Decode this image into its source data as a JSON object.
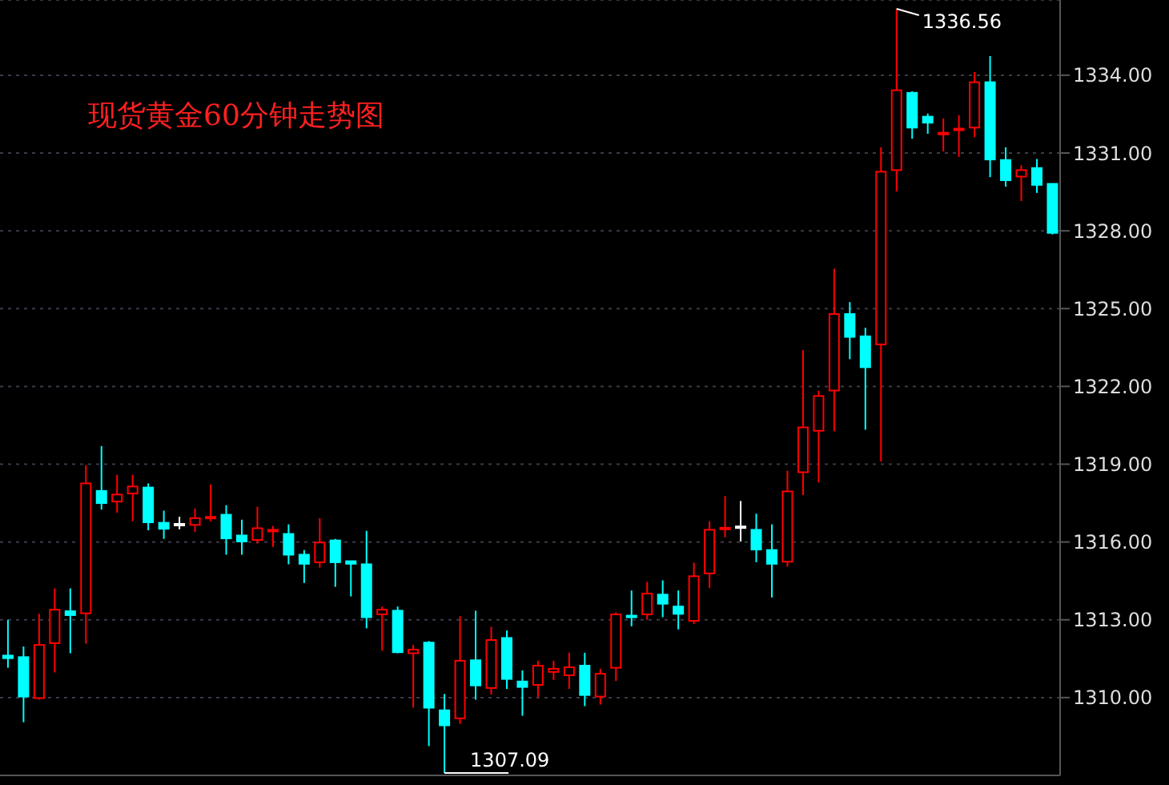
{
  "chart_data": {
    "type": "candlestick",
    "title": "现货黄金60分钟走势图",
    "categories": [
      null,
      null,
      null,
      null,
      null,
      null,
      null,
      null,
      null,
      null,
      null,
      null,
      null,
      null,
      null,
      null,
      null,
      null,
      null,
      null,
      null,
      null,
      null,
      null,
      null,
      null,
      null,
      null,
      null,
      null,
      null,
      null,
      null,
      null,
      null,
      null,
      null,
      null,
      null,
      null,
      null,
      null,
      null,
      null,
      null,
      null,
      null,
      null,
      null,
      null,
      null,
      null,
      null,
      null,
      null,
      null,
      null,
      null,
      null,
      null,
      null,
      null,
      null,
      null,
      null,
      null,
      null,
      null
    ],
    "ohlc": [
      [
        1311.62,
        1313.0,
        1311.15,
        1311.52
      ],
      [
        1311.56,
        1311.97,
        1309.05,
        1310.04
      ],
      [
        1309.98,
        1313.23,
        1309.92,
        1312.03
      ],
      [
        1312.1,
        1314.21,
        1310.97,
        1313.39
      ],
      [
        1313.33,
        1314.21,
        1311.71,
        1313.18
      ],
      [
        1313.25,
        1318.96,
        1312.08,
        1318.26
      ],
      [
        1317.97,
        1319.7,
        1317.25,
        1317.5
      ],
      [
        1317.56,
        1318.59,
        1317.13,
        1317.83
      ],
      [
        1317.87,
        1318.59,
        1316.8,
        1318.14
      ],
      [
        1318.1,
        1318.26,
        1316.45,
        1316.76
      ],
      [
        1316.74,
        1317.21,
        1316.12,
        1316.51
      ],
      [
        1316.7,
        1316.97,
        1316.49,
        1316.7
      ],
      [
        1316.66,
        1317.29,
        1316.39,
        1316.92
      ],
      [
        1316.95,
        1318.22,
        1316.8,
        1316.97
      ],
      [
        1317.05,
        1317.42,
        1315.51,
        1316.14
      ],
      [
        1316.25,
        1316.86,
        1315.51,
        1316.02
      ],
      [
        1316.08,
        1317.36,
        1315.94,
        1316.53
      ],
      [
        1316.45,
        1316.62,
        1315.81,
        1316.47
      ],
      [
        1316.31,
        1316.68,
        1315.14,
        1315.51
      ],
      [
        1315.51,
        1315.69,
        1314.42,
        1315.16
      ],
      [
        1315.22,
        1316.92,
        1315.01,
        1315.98
      ],
      [
        1316.06,
        1316.12,
        1314.27,
        1315.22
      ],
      [
        1315.26,
        1315.26,
        1313.9,
        1315.16
      ],
      [
        1315.14,
        1316.43,
        1312.67,
        1313.1
      ],
      [
        1313.21,
        1313.51,
        1311.81,
        1313.39
      ],
      [
        1313.35,
        1313.51,
        1311.71,
        1311.75
      ],
      [
        1311.71,
        1312.03,
        1309.61,
        1311.85
      ],
      [
        1312.12,
        1312.18,
        1308.13,
        1309.61
      ],
      [
        1309.51,
        1310.14,
        1307.09,
        1308.93
      ],
      [
        1309.2,
        1313.14,
        1308.99,
        1311.42
      ],
      [
        1311.44,
        1313.35,
        1309.92,
        1310.47
      ],
      [
        1310.37,
        1312.73,
        1310.12,
        1312.22
      ],
      [
        1312.3,
        1312.59,
        1310.33,
        1310.72
      ],
      [
        1310.62,
        1311.05,
        1309.3,
        1310.41
      ],
      [
        1310.49,
        1311.42,
        1310.02,
        1311.23
      ],
      [
        1310.99,
        1311.42,
        1310.68,
        1311.11
      ],
      [
        1310.86,
        1311.73,
        1310.33,
        1311.17
      ],
      [
        1311.23,
        1311.73,
        1309.67,
        1310.1
      ],
      [
        1310.04,
        1311.11,
        1309.73,
        1310.92
      ],
      [
        1311.15,
        1313.29,
        1310.64,
        1313.21
      ],
      [
        1313.16,
        1314.13,
        1312.75,
        1313.12
      ],
      [
        1313.21,
        1314.46,
        1313.0,
        1314.01
      ],
      [
        1313.97,
        1314.52,
        1313.1,
        1313.62
      ],
      [
        1313.51,
        1314.13,
        1312.63,
        1313.23
      ],
      [
        1312.96,
        1315.2,
        1312.84,
        1314.68
      ],
      [
        1314.79,
        1316.8,
        1314.23,
        1316.47
      ],
      [
        1316.52,
        1317.77,
        1316.18,
        1316.55
      ],
      [
        1316.6,
        1317.58,
        1316.02,
        1316.6
      ],
      [
        1316.47,
        1317.09,
        1315.22,
        1315.71
      ],
      [
        1315.69,
        1316.68,
        1313.86,
        1315.16
      ],
      [
        1315.24,
        1318.75,
        1315.05,
        1317.95
      ],
      [
        1318.69,
        1323.4,
        1317.81,
        1320.42
      ],
      [
        1320.29,
        1321.84,
        1318.3,
        1321.63
      ],
      [
        1321.84,
        1326.54,
        1320.27,
        1324.79
      ],
      [
        1324.79,
        1325.25,
        1323.05,
        1323.91
      ],
      [
        1323.93,
        1324.26,
        1320.33,
        1322.74
      ],
      [
        1323.62,
        1331.22,
        1319.1,
        1330.28
      ],
      [
        1330.34,
        1336.56,
        1329.52,
        1333.42
      ],
      [
        1333.32,
        1333.38,
        1331.55,
        1331.98
      ],
      [
        1332.4,
        1332.52,
        1331.74,
        1332.17
      ],
      [
        1331.76,
        1332.33,
        1331.06,
        1331.78
      ],
      [
        1331.88,
        1332.46,
        1330.85,
        1331.94
      ],
      [
        1331.98,
        1334.12,
        1331.61,
        1333.73
      ],
      [
        1333.73,
        1334.74,
        1330.07,
        1330.75
      ],
      [
        1330.73,
        1331.22,
        1329.7,
        1329.95
      ],
      [
        1330.09,
        1330.53,
        1329.15,
        1330.34
      ],
      [
        1330.42,
        1330.77,
        1329.46,
        1329.77
      ],
      [
        1329.81,
        1329.81,
        1327.86,
        1327.92
      ]
    ],
    "colors": [
      "#00ffff",
      "#00ffff",
      "#ff0000",
      "#ff0000",
      "#00ffff",
      "#ff0000",
      "#00ffff",
      "#ff0000",
      "#ff0000",
      "#00ffff",
      "#00ffff",
      "#ffffff",
      "#ff0000",
      "#ff0000",
      "#00ffff",
      "#00ffff",
      "#ff0000",
      "#ff0000",
      "#00ffff",
      "#00ffff",
      "#ff0000",
      "#00ffff",
      "#00ffff",
      "#00ffff",
      "#ff0000",
      "#00ffff",
      "#ff0000",
      "#00ffff",
      "#00ffff",
      "#ff0000",
      "#00ffff",
      "#ff0000",
      "#00ffff",
      "#00ffff",
      "#ff0000",
      "#ff0000",
      "#ff0000",
      "#00ffff",
      "#ff0000",
      "#ff0000",
      "#00ffff",
      "#ff0000",
      "#00ffff",
      "#00ffff",
      "#ff0000",
      "#ff0000",
      "#ff0000",
      "#ffffff",
      "#00ffff",
      "#00ffff",
      "#ff0000",
      "#ff0000",
      "#ff0000",
      "#ff0000",
      "#00ffff",
      "#00ffff",
      "#ff0000",
      "#ff0000",
      "#00ffff",
      "#00ffff",
      "#ff0000",
      "#ff0000",
      "#ff0000",
      "#00ffff",
      "#00ffff",
      "#ff0000",
      "#00ffff",
      "#00ffff"
    ],
    "ylim": [
      1307,
      1336.9
    ],
    "yticks": [
      {
        "value": 1310,
        "label": "1310.00"
      },
      {
        "value": 1313,
        "label": "1313.00"
      },
      {
        "value": 1316,
        "label": "1316.00"
      },
      {
        "value": 1319,
        "label": "1319.00"
      },
      {
        "value": 1322,
        "label": "1322.00"
      },
      {
        "value": 1325,
        "label": "1325.00"
      },
      {
        "value": 1328,
        "label": "1328.00"
      },
      {
        "value": 1331,
        "label": "1331.00"
      },
      {
        "value": 1334,
        "label": "1334.00"
      }
    ],
    "grid": "y",
    "tick_labels": "y",
    "annotations": [
      "1336.56",
      "1307.09"
    ]
  }
}
